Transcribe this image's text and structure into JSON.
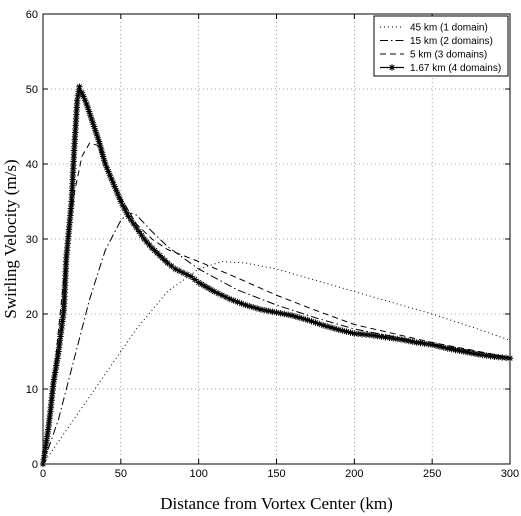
{
  "chart_data": {
    "type": "line",
    "title": "",
    "xlabel": "Distance from Vortex Center (km)",
    "ylabel": "Swirling Velocity (m/s)",
    "xlim": [
      0,
      300
    ],
    "ylim": [
      0,
      60
    ],
    "xticks": [
      "0",
      "50",
      "100",
      "150",
      "200",
      "250",
      "300"
    ],
    "yticks": [
      "0",
      "10",
      "20",
      "30",
      "40",
      "50",
      "60"
    ],
    "grid": true,
    "grid_style": "dotted",
    "legend_position": "top-right",
    "series": [
      {
        "name": "45 km (1 domain)",
        "style": "dotted",
        "marker": "none",
        "points": [
          [
            0,
            0
          ],
          [
            20,
            6
          ],
          [
            40,
            12
          ],
          [
            60,
            18
          ],
          [
            80,
            23
          ],
          [
            100,
            26
          ],
          [
            115,
            27
          ],
          [
            130,
            26.8
          ],
          [
            150,
            26
          ],
          [
            175,
            24.5
          ],
          [
            200,
            23
          ],
          [
            225,
            21.5
          ],
          [
            250,
            20
          ],
          [
            275,
            18.3
          ],
          [
            300,
            16.5
          ]
        ]
      },
      {
        "name": "15 km (2 domains)",
        "style": "dashdot",
        "marker": "none",
        "points": [
          [
            0,
            0
          ],
          [
            10,
            6
          ],
          [
            20,
            14
          ],
          [
            30,
            22
          ],
          [
            40,
            28.5
          ],
          [
            50,
            32.5
          ],
          [
            55,
            33.5
          ],
          [
            60,
            33.2
          ],
          [
            70,
            31
          ],
          [
            80,
            29
          ],
          [
            90,
            27.5
          ],
          [
            100,
            26
          ],
          [
            125,
            23.2
          ],
          [
            150,
            21.2
          ],
          [
            175,
            19.5
          ],
          [
            200,
            18
          ],
          [
            250,
            16
          ],
          [
            300,
            14.2
          ]
        ]
      },
      {
        "name": "5 km (3 domains)",
        "style": "dashed",
        "marker": "none",
        "points": [
          [
            0,
            0
          ],
          [
            5,
            7
          ],
          [
            10,
            18
          ],
          [
            15,
            28
          ],
          [
            20,
            36
          ],
          [
            25,
            41
          ],
          [
            30,
            42.8
          ],
          [
            35,
            42.5
          ],
          [
            40,
            40
          ],
          [
            50,
            35.5
          ],
          [
            60,
            32
          ],
          [
            70,
            30
          ],
          [
            80,
            28.6
          ],
          [
            100,
            27
          ],
          [
            125,
            24.8
          ],
          [
            150,
            22.5
          ],
          [
            175,
            20.5
          ],
          [
            200,
            18.6
          ],
          [
            250,
            16.2
          ],
          [
            300,
            14.2
          ]
        ]
      },
      {
        "name": "1.67 km (4 domains)",
        "style": "solid",
        "marker": "asterisk",
        "points": [
          [
            0,
            0
          ],
          [
            1.67,
            2.2
          ],
          [
            3.34,
            4.6
          ],
          [
            5,
            7.5
          ],
          [
            6.68,
            10.8
          ],
          [
            10,
            15
          ],
          [
            13.36,
            20.5
          ],
          [
            15,
            27.5
          ],
          [
            18.37,
            35
          ],
          [
            20,
            41.8
          ],
          [
            22,
            48.5
          ],
          [
            23.38,
            50.3
          ],
          [
            25,
            49.5
          ],
          [
            28,
            48
          ],
          [
            32,
            45.5
          ],
          [
            36,
            43
          ],
          [
            40,
            40
          ],
          [
            45,
            37.5
          ],
          [
            50,
            35
          ],
          [
            55,
            33
          ],
          [
            60,
            31.5
          ],
          [
            65,
            30
          ],
          [
            70,
            28.8
          ],
          [
            75,
            27.8
          ],
          [
            80,
            26.8
          ],
          [
            85,
            26
          ],
          [
            90,
            25.5
          ],
          [
            95,
            25
          ],
          [
            100,
            24.2
          ],
          [
            110,
            23
          ],
          [
            120,
            22
          ],
          [
            130,
            21.2
          ],
          [
            140,
            20.6
          ],
          [
            150,
            20.2
          ],
          [
            160,
            19.8
          ],
          [
            170,
            19.2
          ],
          [
            180,
            18.5
          ],
          [
            190,
            17.9
          ],
          [
            200,
            17.4
          ],
          [
            210,
            17.2
          ],
          [
            220,
            16.9
          ],
          [
            230,
            16.6
          ],
          [
            240,
            16.2
          ],
          [
            250,
            15.9
          ],
          [
            260,
            15.4
          ],
          [
            270,
            15
          ],
          [
            280,
            14.6
          ],
          [
            290,
            14.3
          ],
          [
            300,
            14.1
          ]
        ]
      }
    ]
  }
}
